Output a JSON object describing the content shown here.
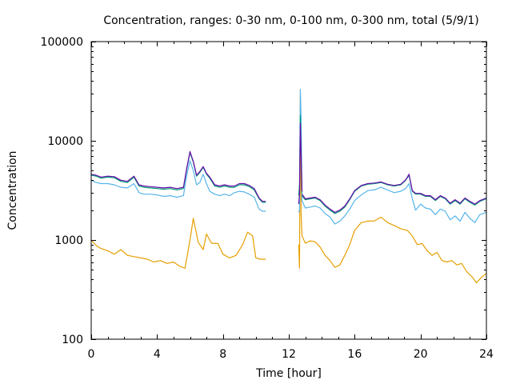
{
  "chart_data": {
    "type": "line",
    "title": "Concentration, ranges: 0-30 nm, 0-100 nm, 0-300 nm, total (5/9/1)",
    "xlabel": "Time [hour]",
    "ylabel": "Concentration",
    "xlim": [
      0,
      24
    ],
    "ylim": [
      100,
      100000
    ],
    "yscale": "log",
    "grid": false,
    "legend": "none",
    "x_ticks": [
      "0",
      "4",
      "8",
      "12",
      "16",
      "20",
      "24"
    ],
    "x_tick_values": [
      0,
      4,
      8,
      12,
      16,
      20,
      24
    ],
    "y_ticks": [
      "100",
      "1000",
      "10000",
      "100000"
    ],
    "y_tick_values": [
      100,
      1000,
      10000,
      100000
    ],
    "series": [
      {
        "name": "0-30 nm",
        "color": "#e69f00",
        "segments": [
          {
            "x": [
              0,
              0.3,
              0.6,
              1.0,
              1.4,
              1.8,
              2.2,
              2.6,
              3.0,
              3.4,
              3.8,
              4.2,
              4.6,
              5.0,
              5.4,
              5.7,
              6.0,
              6.2,
              6.5,
              6.8,
              7.0,
              7.3,
              7.7,
              8.0,
              8.4,
              8.8,
              9.2,
              9.5,
              9.8,
              10.0,
              10.3,
              10.6
            ],
            "y": [
              1000,
              880,
              820,
              780,
              720,
              800,
              700,
              680,
              660,
              640,
              600,
              620,
              580,
              600,
              540,
              520,
              1000,
              1650,
              950,
              800,
              1150,
              930,
              920,
              720,
              660,
              700,
              900,
              1200,
              1100,
              660,
              640,
              640
            ]
          }
        ],
        "spike": {
          "x": [
            12.6,
            12.65,
            12.7,
            12.75,
            12.8
          ],
          "y": [
            900,
            520,
            28000,
            1800,
            1100
          ]
        },
        "after": {
          "x": [
            12.8,
            13.0,
            13.3,
            13.6,
            13.9,
            14.2,
            14.5,
            14.8,
            15.1,
            15.4,
            15.7,
            16.0,
            16.4,
            16.8,
            17.2,
            17.6,
            18.0,
            18.4,
            18.8,
            19.2,
            19.5,
            19.8,
            20.1,
            20.4,
            20.7,
            21.0,
            21.3,
            21.6,
            21.9,
            22.2,
            22.5,
            22.8,
            23.1,
            23.4,
            23.7,
            24.0
          ],
          "y": [
            1100,
            930,
            980,
            960,
            850,
            700,
            620,
            530,
            560,
            700,
            900,
            1250,
            1500,
            1550,
            1560,
            1700,
            1500,
            1400,
            1300,
            1250,
            1100,
            900,
            920,
            780,
            700,
            750,
            620,
            600,
            620,
            560,
            580,
            480,
            430,
            370,
            420,
            460
          ]
        }
      },
      {
        "name": "0-100 nm",
        "color": "#56b4e9",
        "segments": [
          {
            "x": [
              0,
              0.3,
              0.6,
              1.0,
              1.4,
              1.8,
              2.2,
              2.6,
              2.9,
              3.2,
              3.6,
              4.0,
              4.4,
              4.8,
              5.2,
              5.6,
              5.8,
              6.0,
              6.2,
              6.4,
              6.6,
              6.8,
              7.0,
              7.2,
              7.5,
              7.8,
              8.1,
              8.4,
              8.7,
              9.0,
              9.3,
              9.6,
              9.9,
              10.2,
              10.4,
              10.6
            ],
            "y": [
              4000,
              3800,
              3700,
              3700,
              3600,
              3400,
              3350,
              3700,
              3000,
              2900,
              2900,
              2850,
              2750,
              2800,
              2700,
              2800,
              4500,
              6300,
              5000,
              3600,
              3800,
              4600,
              3700,
              3100,
              2900,
              2800,
              2900,
              2800,
              3000,
              3100,
              3050,
              2900,
              2700,
              2050,
              1950,
              1950
            ]
          }
        ],
        "spike": {
          "x": [
            12.6,
            12.65,
            12.7,
            12.75,
            12.8
          ],
          "y": [
            1900,
            2000,
            33000,
            17000,
            2500
          ]
        },
        "after": {
          "x": [
            12.8,
            13.0,
            13.3,
            13.6,
            13.9,
            14.2,
            14.5,
            14.8,
            15.1,
            15.4,
            15.7,
            16.0,
            16.4,
            16.8,
            17.2,
            17.6,
            18.0,
            18.4,
            18.8,
            19.1,
            19.3,
            19.5,
            19.7,
            20.0,
            20.3,
            20.6,
            20.9,
            21.2,
            21.5,
            21.8,
            22.1,
            22.4,
            22.7,
            23.0,
            23.3,
            23.6,
            24.0
          ],
          "y": [
            2500,
            2100,
            2150,
            2200,
            2100,
            1850,
            1700,
            1450,
            1550,
            1750,
            2050,
            2500,
            2850,
            3150,
            3200,
            3400,
            3200,
            3000,
            3100,
            3300,
            3700,
            2600,
            2000,
            2300,
            2100,
            2050,
            1800,
            2050,
            1950,
            1600,
            1750,
            1550,
            1900,
            1650,
            1500,
            1800,
            1900
          ]
        }
      },
      {
        "name": "0-300 nm",
        "color": "#009e73",
        "segments": [
          {
            "x": [
              0,
              0.3,
              0.6,
              1.0,
              1.4,
              1.8,
              2.2,
              2.6,
              2.9,
              3.2,
              3.6,
              4.0,
              4.4,
              4.8,
              5.2,
              5.6,
              5.8,
              6.0,
              6.2,
              6.4,
              6.6,
              6.8,
              7.0,
              7.2,
              7.5,
              7.8,
              8.1,
              8.4,
              8.7,
              9.0,
              9.3,
              9.6,
              9.9,
              10.2,
              10.4,
              10.6
            ],
            "y": [
              4500,
              4400,
              4200,
              4300,
              4250,
              3900,
              3800,
              4300,
              3500,
              3400,
              3350,
              3300,
              3250,
              3300,
              3200,
              3300,
              5200,
              7600,
              6100,
              4400,
              4800,
              5400,
              4600,
              4200,
              3500,
              3400,
              3500,
              3400,
              3400,
              3600,
              3600,
              3450,
              3200,
              2600,
              2400,
              2400
            ]
          }
        ],
        "spike": {
          "x": [
            12.6,
            12.65,
            12.7,
            12.75,
            12.8
          ],
          "y": [
            2800,
            3600,
            18000,
            8000,
            3000
          ]
        },
        "after": {
          "x": [
            12.8,
            13.0,
            13.3,
            13.6,
            13.9,
            14.2,
            14.5,
            14.8,
            15.1,
            15.4,
            15.7,
            16.0,
            16.4,
            16.8,
            17.2,
            17.6,
            18.0,
            18.4,
            18.8,
            19.1,
            19.3,
            19.5,
            19.7,
            20.0,
            20.3,
            20.6,
            20.9,
            21.2,
            21.5,
            21.8,
            22.1,
            22.4,
            22.7,
            23.0,
            23.3,
            23.6,
            24.0
          ],
          "y": [
            2800,
            2550,
            2600,
            2650,
            2500,
            2200,
            2000,
            1850,
            1950,
            2150,
            2550,
            3100,
            3500,
            3650,
            3700,
            3800,
            3600,
            3500,
            3600,
            4000,
            4500,
            3100,
            2900,
            2900,
            2750,
            2750,
            2500,
            2750,
            2600,
            2300,
            2500,
            2300,
            2600,
            2400,
            2250,
            2450,
            2600
          ]
        }
      },
      {
        "name": "total",
        "color": "#6a0dad",
        "segments": [
          {
            "x": [
              0,
              0.3,
              0.6,
              1.0,
              1.4,
              1.8,
              2.2,
              2.6,
              2.9,
              3.2,
              3.6,
              4.0,
              4.4,
              4.8,
              5.2,
              5.6,
              5.8,
              6.0,
              6.2,
              6.4,
              6.6,
              6.8,
              7.0,
              7.2,
              7.5,
              7.8,
              8.1,
              8.4,
              8.7,
              9.0,
              9.3,
              9.6,
              9.9,
              10.2,
              10.4,
              10.6
            ],
            "y": [
              4600,
              4500,
              4300,
              4400,
              4350,
              4000,
              3900,
              4400,
              3600,
              3500,
              3450,
              3400,
              3350,
              3400,
              3300,
              3400,
              5300,
              7800,
              6200,
              4500,
              4900,
              5500,
              4700,
              4300,
              3600,
              3500,
              3600,
              3500,
              3500,
              3700,
              3700,
              3550,
              3300,
              2650,
              2450,
              2450
            ]
          }
        ],
        "spike": {
          "x": [
            12.6,
            12.65,
            12.7,
            12.75,
            12.8
          ],
          "y": [
            2300,
            2900,
            15000,
            7000,
            3100
          ]
        },
        "after": {
          "x": [
            12.8,
            13.0,
            13.3,
            13.6,
            13.9,
            14.2,
            14.5,
            14.8,
            15.1,
            15.4,
            15.7,
            16.0,
            16.4,
            16.8,
            17.2,
            17.6,
            18.0,
            18.4,
            18.8,
            19.1,
            19.3,
            19.5,
            19.7,
            20.0,
            20.3,
            20.6,
            20.9,
            21.2,
            21.5,
            21.8,
            22.1,
            22.4,
            22.7,
            23.0,
            23.3,
            23.6,
            24.0
          ],
          "y": [
            2900,
            2600,
            2650,
            2700,
            2550,
            2250,
            2050,
            1900,
            2000,
            2200,
            2600,
            3150,
            3550,
            3700,
            3750,
            3850,
            3650,
            3550,
            3650,
            4050,
            4600,
            3150,
            2950,
            2950,
            2800,
            2800,
            2550,
            2800,
            2650,
            2350,
            2550,
            2350,
            2650,
            2450,
            2300,
            2500,
            2650
          ]
        }
      }
    ]
  }
}
